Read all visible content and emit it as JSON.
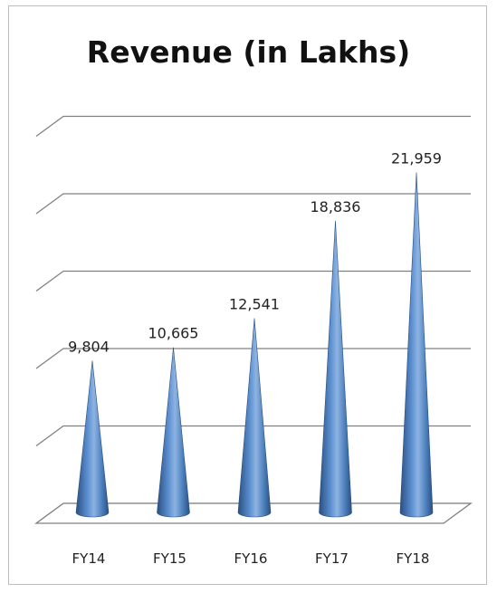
{
  "chart_data": {
    "type": "bar",
    "bar_shape": "cone",
    "title": "Revenue (in Lakhs)",
    "xlabel": "",
    "ylabel": "",
    "categories": [
      "FY14",
      "FY15",
      "FY16",
      "FY17",
      "FY18"
    ],
    "values": [
      9804,
      10665,
      12541,
      18836,
      21959
    ],
    "data_labels": [
      "9,804",
      "10,665",
      "12,541",
      "18,836",
      "21,959"
    ],
    "ylim": [
      0,
      25000
    ],
    "grid": true,
    "legend": "none",
    "colors": {
      "bar": "#4a7ebb",
      "bar_dark": "#2a4f80",
      "bar_light": "#8db3e2",
      "grid": "#808080"
    }
  }
}
